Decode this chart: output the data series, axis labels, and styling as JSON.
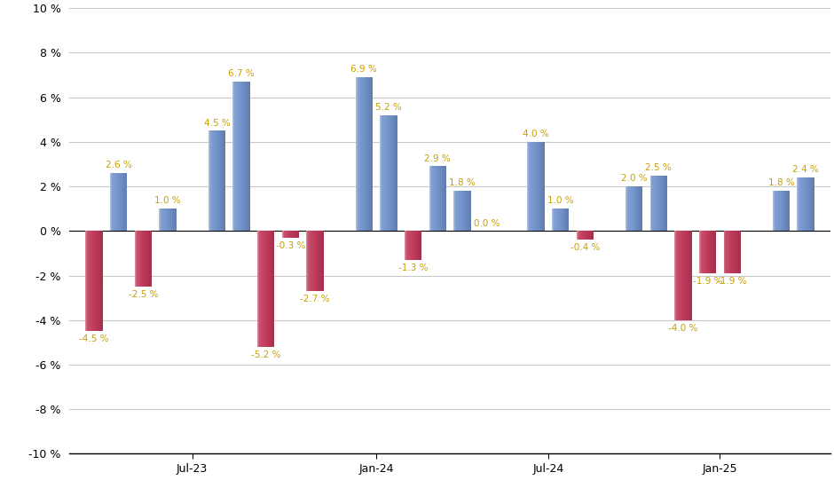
{
  "title": "",
  "ylim": [
    -10,
    10
  ],
  "yticks": [
    -10,
    -8,
    -6,
    -4,
    -2,
    0,
    2,
    4,
    6,
    8,
    10
  ],
  "ytick_labels": [
    "-10 %",
    "-8 %",
    "-6 %",
    "-4 %",
    "-2 %",
    "0 %",
    "2 %",
    "4 %",
    "6 %",
    "8 %",
    "10 %"
  ],
  "bar_color_blue": "#7293CB",
  "bar_color_red": "#C0395A",
  "bar_width": 0.7,
  "background_color": "#FFFFFF",
  "grid_color": "#C8C8C8",
  "label_color": "#C8A000",
  "bars": [
    {
      "x": 1,
      "value": -4.5,
      "color": "red"
    },
    {
      "x": 2,
      "value": 2.6,
      "color": "blue"
    },
    {
      "x": 3,
      "value": -2.5,
      "color": "red"
    },
    {
      "x": 4,
      "value": 1.0,
      "color": "blue"
    },
    {
      "x": 6,
      "value": 4.5,
      "color": "blue"
    },
    {
      "x": 7,
      "value": 6.7,
      "color": "blue"
    },
    {
      "x": 8,
      "value": -5.2,
      "color": "red"
    },
    {
      "x": 9,
      "value": -0.3,
      "color": "red"
    },
    {
      "x": 10,
      "value": -2.7,
      "color": "red"
    },
    {
      "x": 12,
      "value": 6.9,
      "color": "blue"
    },
    {
      "x": 13,
      "value": 5.2,
      "color": "blue"
    },
    {
      "x": 14,
      "value": -1.3,
      "color": "red"
    },
    {
      "x": 15,
      "value": 2.9,
      "color": "blue"
    },
    {
      "x": 16,
      "value": 1.8,
      "color": "blue"
    },
    {
      "x": 17,
      "value": 0.0,
      "color": "blue"
    },
    {
      "x": 19,
      "value": 4.0,
      "color": "blue"
    },
    {
      "x": 20,
      "value": 1.0,
      "color": "blue"
    },
    {
      "x": 21,
      "value": -0.4,
      "color": "red"
    },
    {
      "x": 23,
      "value": 2.0,
      "color": "blue"
    },
    {
      "x": 24,
      "value": 2.5,
      "color": "blue"
    },
    {
      "x": 25,
      "value": -4.0,
      "color": "red"
    },
    {
      "x": 26,
      "value": -1.9,
      "color": "red"
    },
    {
      "x": 27,
      "value": -1.9,
      "color": "red"
    },
    {
      "x": 29,
      "value": 1.8,
      "color": "blue"
    },
    {
      "x": 30,
      "value": 2.4,
      "color": "blue"
    }
  ],
  "xtick_positions": [
    5.0,
    12.5,
    19.5,
    26.5
  ],
  "xtick_labels": [
    "Jul-23",
    "Jan-24",
    "Jul-24",
    "Jan-25"
  ],
  "xlim": [
    0,
    31
  ]
}
